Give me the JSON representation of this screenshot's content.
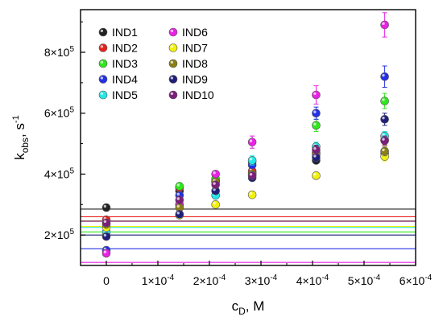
{
  "chart_data": {
    "type": "scatter",
    "xlabel": {
      "main": "c",
      "sub": "D",
      "rest": ", M"
    },
    "ylabel": {
      "main": "k",
      "sub": "obs",
      "rest": ", s",
      "sup": "-1"
    },
    "xlim": [
      -5e-05,
      0.0006
    ],
    "ylim": [
      100000,
      940000
    ],
    "xticks": [
      0,
      0.0001,
      0.0002,
      0.0003,
      0.0004,
      0.0005,
      0.0006
    ],
    "xtick_labels": [
      {
        "base": "0",
        "exp": ""
      },
      {
        "base": "1×10",
        "exp": "-4"
      },
      {
        "base": "2×10",
        "exp": "-4"
      },
      {
        "base": "3×10",
        "exp": "-4"
      },
      {
        "base": "4×10",
        "exp": "-4"
      },
      {
        "base": "5×10",
        "exp": "-4"
      },
      {
        "base": "6×10",
        "exp": "-4"
      }
    ],
    "yticks": [
      200000,
      400000,
      600000,
      800000
    ],
    "ytick_labels": [
      {
        "base": "2×10",
        "exp": "5"
      },
      {
        "base": "4×10",
        "exp": "5"
      },
      {
        "base": "6×10",
        "exp": "5"
      },
      {
        "base": "8×10",
        "exp": "5"
      }
    ],
    "legend_position": "top-left",
    "x": [
      0,
      0.000142,
      0.000212,
      0.000283,
      0.000407,
      0.00054
    ],
    "series": [
      {
        "name": "IND1",
        "color": "#222222",
        "y": [
          290000,
          345000,
          378000,
          405000,
          445000,
          468000
        ],
        "err": [
          0,
          0,
          0,
          0,
          10000,
          15000
        ],
        "fit": [
          285000,
          370
        ]
      },
      {
        "name": "IND2",
        "color": "#e8211b",
        "y": [
          250000,
          355000,
          375000,
          410000,
          470000,
          512000
        ],
        "err": [
          0,
          0,
          0,
          0,
          15000,
          15000
        ],
        "fit": [
          260000,
          490
        ]
      },
      {
        "name": "IND3",
        "color": "#2ee81b",
        "y": [
          200000,
          360000,
          385000,
          440000,
          560000,
          640000
        ],
        "err": [
          0,
          0,
          0,
          0,
          20000,
          25000
        ],
        "fit": [
          210000,
          810
        ]
      },
      {
        "name": "IND4",
        "color": "#2430e6",
        "y": [
          150000,
          330000,
          375000,
          430000,
          600000,
          720000
        ],
        "err": [
          0,
          0,
          0,
          0,
          20000,
          35000
        ],
        "fit": [
          155000,
          1050
        ]
      },
      {
        "name": "IND5",
        "color": "#22e8e8",
        "y": [
          210000,
          300000,
          330000,
          445000,
          490000,
          525000
        ],
        "err": [
          0,
          0,
          0,
          15000,
          15000,
          15000
        ],
        "fit": [
          225000,
          620
        ]
      },
      {
        "name": "IND6",
        "color": "#e822e4",
        "y": [
          140000,
          300000,
          400000,
          505000,
          660000,
          890000
        ],
        "err": [
          0,
          0,
          0,
          20000,
          30000,
          40000
        ],
        "fit": [
          110000,
          1380
        ]
      },
      {
        "name": "IND7",
        "color": "#f1f10f",
        "y": [
          225000,
          265000,
          300000,
          332000,
          395000,
          458000
        ],
        "err": [
          0,
          0,
          0,
          0,
          10000,
          15000
        ],
        "fit": [
          228000,
          420
        ]
      },
      {
        "name": "IND8",
        "color": "#8a7f14",
        "y": [
          235000,
          290000,
          375000,
          400000,
          465000,
          475000
        ],
        "err": [
          0,
          0,
          0,
          0,
          15000,
          15000
        ],
        "fit": [
          246000,
          480
        ]
      },
      {
        "name": "IND9",
        "color": "#1f1f7a",
        "y": [
          195000,
          268000,
          345000,
          388000,
          455000,
          580000
        ],
        "err": [
          0,
          0,
          0,
          0,
          15000,
          20000
        ],
        "fit": [
          200000,
          650
        ]
      },
      {
        "name": "IND10",
        "color": "#7a1f7a",
        "y": [
          240000,
          315000,
          365000,
          395000,
          480000,
          510000
        ],
        "err": [
          0,
          0,
          0,
          0,
          15000,
          15000
        ],
        "fit": [
          245000,
          505
        ]
      }
    ]
  }
}
